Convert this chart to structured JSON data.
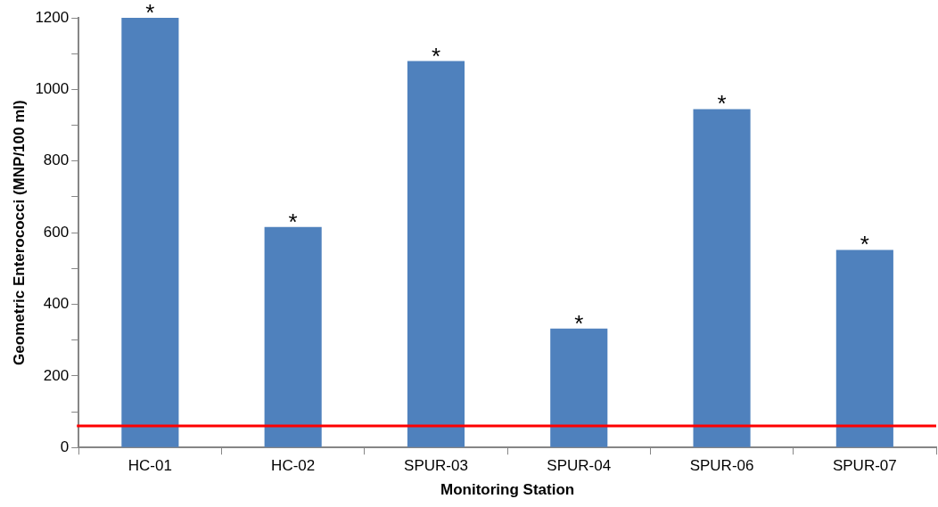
{
  "chart_data": {
    "type": "bar",
    "xlabel": "Monitoring Station",
    "ylabel": "Geometric Enterococci (MNP/100 ml)",
    "categories": [
      "HC-01",
      "HC-02",
      "SPUR-03",
      "SPUR-04",
      "SPUR-06",
      "SPUR-07"
    ],
    "values": [
      1200,
      616,
      1079,
      332,
      945,
      552
    ],
    "color": "#4f81bd",
    "ylim": [
      0,
      1200
    ],
    "yticks": [
      0,
      {
        "value": 100,
        "label": null
      },
      200,
      {
        "value": 300,
        "label": null
      },
      400,
      {
        "value": 500,
        "label": null
      },
      600,
      {
        "value": 700,
        "label": null
      },
      800,
      {
        "value": 900,
        "label": null
      },
      1000,
      {
        "value": 1100,
        "label": null
      },
      1200
    ],
    "grid": false,
    "legend": false,
    "ref_lines": [
      {
        "axis": "y",
        "value": 60,
        "color": "#ff0000",
        "line_style": "solid"
      }
    ],
    "annotations": [
      {
        "text": "*",
        "x": "HC-01",
        "y": 1200
      },
      {
        "text": "*",
        "x": "HC-02",
        "y": 616
      },
      {
        "text": "*",
        "x": "SPUR-03",
        "y": 1079
      },
      {
        "text": "*",
        "x": "SPUR-04",
        "y": 332
      },
      {
        "text": "*",
        "x": "SPUR-06",
        "y": 945
      },
      {
        "text": "*",
        "x": "SPUR-07",
        "y": 552
      }
    ]
  }
}
